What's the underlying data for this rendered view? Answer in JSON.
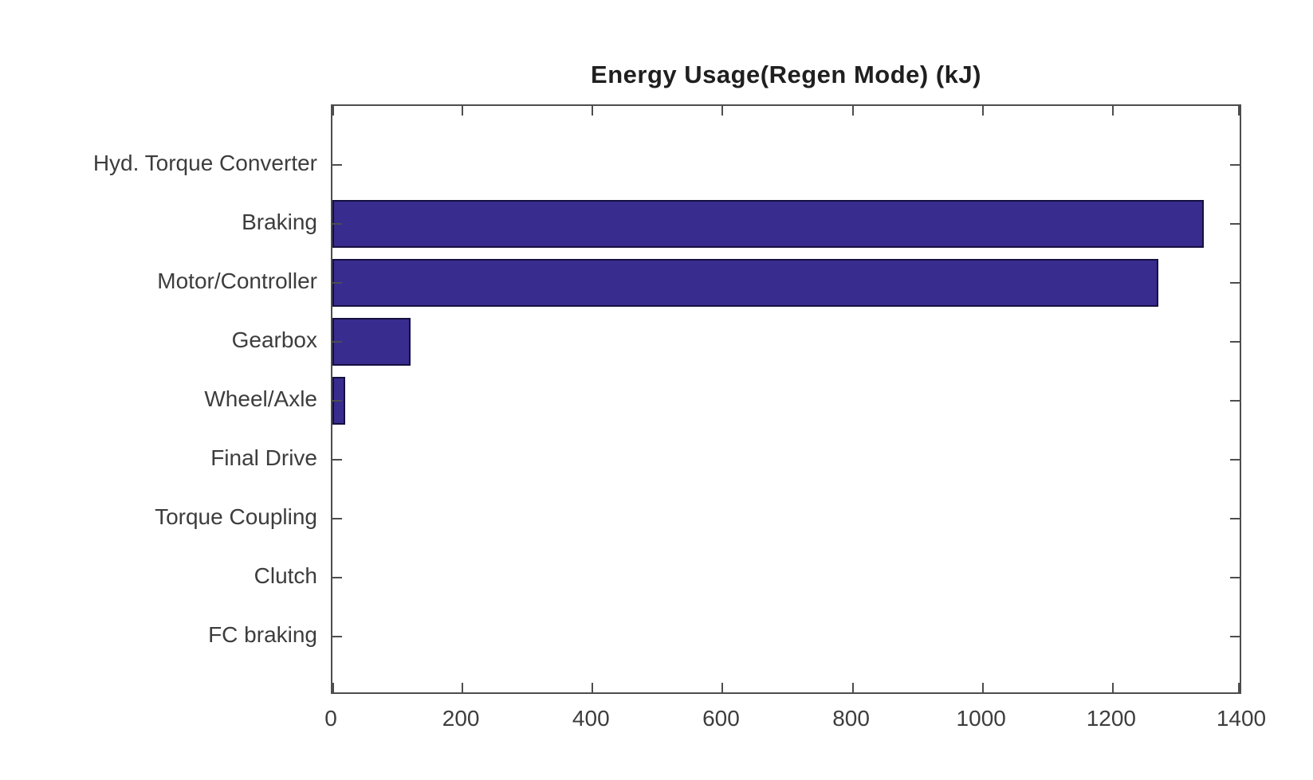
{
  "chart_data": {
    "type": "bar",
    "orientation": "horizontal",
    "title": "Energy Usage(Regen Mode) (kJ)",
    "categories": [
      "Hyd. Torque Converter",
      "Braking",
      "Motor/Controller",
      "Gearbox",
      "Wheel/Axle",
      "Final Drive",
      "Torque Coupling",
      "Clutch",
      "FC braking"
    ],
    "values": [
      0,
      1340,
      1270,
      120,
      20,
      0,
      0,
      0,
      0
    ],
    "xlabel": "",
    "ylabel": "",
    "xlim": [
      0,
      1400
    ],
    "x_ticks": [
      0,
      200,
      400,
      600,
      800,
      1000,
      1200,
      1400
    ],
    "x_tick_labels": [
      "0",
      "200",
      "400",
      "600",
      "800",
      "1000",
      "1200",
      "1400"
    ],
    "grid": false,
    "legend": null,
    "bar_color": "#382c8f",
    "bar_edge_color": "#15103f",
    "axis_color": "#4d4d4d",
    "text_color": "#3d3d3d",
    "title_color": "#1f1f1f",
    "background_color": "#ffffff"
  }
}
